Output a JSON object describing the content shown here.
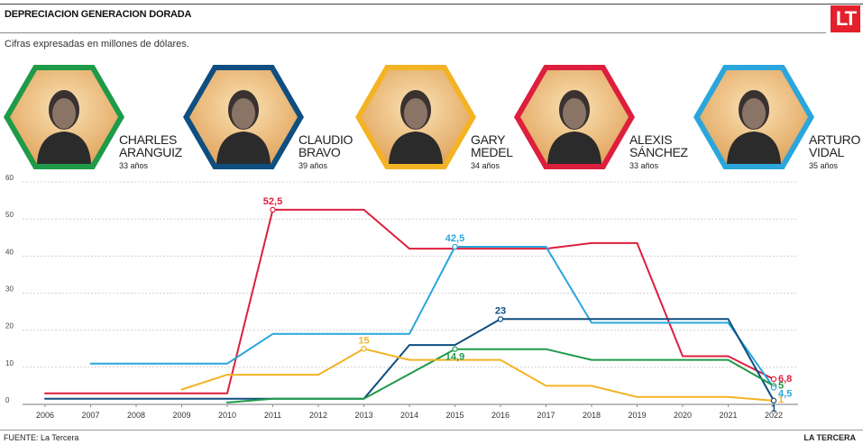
{
  "header": {
    "title": "DEPRECIACION GENERACION DORADA",
    "subtitle": "Cifras expresadas en millones de dólares.",
    "logo": "LT"
  },
  "players": [
    {
      "first": "CHARLES",
      "last": "ARANGUIZ",
      "age": "33 años",
      "color": "#1e9a48",
      "icon": "player-photo"
    },
    {
      "first": "CLAUDIO",
      "last": "BRAVO",
      "age": "39 años",
      "color": "#0e4e80",
      "icon": "player-photo"
    },
    {
      "first": "GARY",
      "last": "MEDEL",
      "age": "34 años",
      "color": "#f3b325",
      "icon": "player-photo"
    },
    {
      "first": "ALEXIS",
      "last": "SÁNCHEZ",
      "age": "33 años",
      "color": "#dd1f3d",
      "icon": "player-photo"
    },
    {
      "first": "ARTURO",
      "last": "VIDAL",
      "age": "35 años",
      "color": "#2aa6dc",
      "icon": "player-photo"
    }
  ],
  "chart_data": {
    "type": "line",
    "x": [
      "2006",
      "2007",
      "2008",
      "2009",
      "2010",
      "2011",
      "2012",
      "2013",
      "2014",
      "2015",
      "2016",
      "2017",
      "2018",
      "2019",
      "2020",
      "2021",
      "2022"
    ],
    "ylim": [
      0,
      60
    ],
    "yticks": [
      "0",
      "10",
      "20",
      "30",
      "40",
      "50",
      "60"
    ],
    "grid": true,
    "series": [
      {
        "name": "ALEXIS SÁNCHEZ",
        "color": "#dd1f3d",
        "points": [
          [
            2006,
            3
          ],
          [
            2010,
            3
          ],
          [
            2011,
            52.5
          ],
          [
            2013,
            52.5
          ],
          [
            2014,
            42
          ],
          [
            2017,
            42
          ],
          [
            2018,
            43.5
          ],
          [
            2019,
            43.5
          ],
          [
            2020,
            13
          ],
          [
            2021,
            13
          ],
          [
            2022,
            6.8
          ]
        ]
      },
      {
        "name": "ARTURO VIDAL",
        "color": "#2aa6dc",
        "points": [
          [
            2007,
            11
          ],
          [
            2010,
            11
          ],
          [
            2011,
            19
          ],
          [
            2014,
            19
          ],
          [
            2015,
            42.5
          ],
          [
            2017,
            42.5
          ],
          [
            2018,
            22
          ],
          [
            2021,
            22
          ],
          [
            2022,
            4.5
          ]
        ]
      },
      {
        "name": "CLAUDIO BRAVO",
        "color": "#0e4e80",
        "points": [
          [
            2006,
            1.5
          ],
          [
            2013,
            1.5
          ],
          [
            2014,
            16
          ],
          [
            2015,
            16
          ],
          [
            2016,
            23
          ],
          [
            2021,
            23
          ],
          [
            2022,
            1
          ]
        ]
      },
      {
        "name": "CHARLES ARANGUIZ",
        "color": "#1e9a48",
        "points": [
          [
            2010,
            0.5
          ],
          [
            2011,
            1.5
          ],
          [
            2013,
            1.5
          ],
          [
            2015,
            14.9
          ],
          [
            2017,
            14.9
          ],
          [
            2018,
            12
          ],
          [
            2021,
            12
          ],
          [
            2022,
            5
          ]
        ]
      },
      {
        "name": "GARY MEDEL",
        "color": "#f3b325",
        "points": [
          [
            2009,
            4
          ],
          [
            2010,
            8
          ],
          [
            2012,
            8
          ],
          [
            2013,
            15
          ],
          [
            2014,
            12
          ],
          [
            2016,
            12
          ],
          [
            2017,
            5
          ],
          [
            2018,
            5
          ],
          [
            2019,
            2
          ],
          [
            2021,
            2
          ],
          [
            2022,
            1
          ]
        ]
      }
    ],
    "annotations": [
      {
        "text": "52,5",
        "x": 2011,
        "y": 52.5,
        "color": "#dd1f3d",
        "pos": "above",
        "marker": true
      },
      {
        "text": "42,5",
        "x": 2015,
        "y": 42.5,
        "color": "#2aa6dc",
        "pos": "above",
        "marker": true
      },
      {
        "text": "23",
        "x": 2016,
        "y": 23,
        "color": "#0e4e80",
        "pos": "above",
        "marker": true
      },
      {
        "text": "15",
        "x": 2013,
        "y": 15,
        "color": "#f3b325",
        "pos": "above",
        "marker": true
      },
      {
        "text": "14,9",
        "x": 2015,
        "y": 14.9,
        "color": "#1e9a48",
        "pos": "below",
        "marker": true
      },
      {
        "text": "6,8",
        "x": 2022,
        "y": 6.8,
        "color": "#dd1f3d",
        "pos": "right",
        "marker": true
      },
      {
        "text": "5",
        "x": 2022,
        "y": 5,
        "color": "#1e9a48",
        "pos": "right",
        "marker": true
      },
      {
        "text": "4,5",
        "x": 2022,
        "y": 4.5,
        "color": "#2aa6dc",
        "pos": "right-below",
        "marker": true
      },
      {
        "text": "1",
        "x": 2022,
        "y": 1,
        "color": "#f3b325",
        "pos": "right",
        "marker": true
      },
      {
        "text": "1",
        "x": 2022,
        "y": 1,
        "color": "#0e4e80",
        "pos": "below",
        "marker": true
      }
    ]
  },
  "footer": {
    "source": "FUENTE: La Tercera",
    "brand": "LA TERCERA"
  }
}
